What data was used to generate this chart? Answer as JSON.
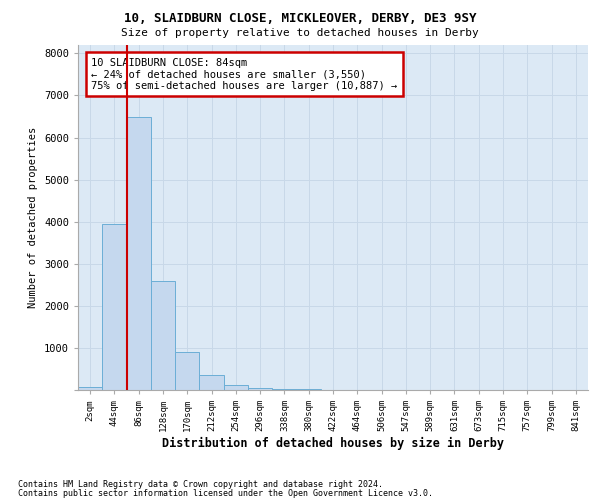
{
  "title1": "10, SLAIDBURN CLOSE, MICKLEOVER, DERBY, DE3 9SY",
  "title2": "Size of property relative to detached houses in Derby",
  "xlabel": "Distribution of detached houses by size in Derby",
  "ylabel": "Number of detached properties",
  "footnote1": "Contains HM Land Registry data © Crown copyright and database right 2024.",
  "footnote2": "Contains public sector information licensed under the Open Government Licence v3.0.",
  "annotation_line1": "10 SLAIDBURN CLOSE: 84sqm",
  "annotation_line2": "← 24% of detached houses are smaller (3,550)",
  "annotation_line3": "75% of semi-detached houses are larger (10,887) →",
  "bar_labels": [
    "2sqm",
    "44sqm",
    "86sqm",
    "128sqm",
    "170sqm",
    "212sqm",
    "254sqm",
    "296sqm",
    "338sqm",
    "380sqm",
    "422sqm",
    "464sqm",
    "506sqm",
    "547sqm",
    "589sqm",
    "631sqm",
    "673sqm",
    "715sqm",
    "757sqm",
    "799sqm",
    "841sqm"
  ],
  "bar_values": [
    70,
    3950,
    6500,
    2600,
    900,
    350,
    130,
    55,
    30,
    15,
    8,
    4,
    2,
    1,
    1,
    0,
    0,
    0,
    0,
    0,
    0
  ],
  "bar_color": "#c5d8ee",
  "bar_edge_color": "#6baed6",
  "grid_color": "#c8d8e8",
  "background_color": "#dce9f5",
  "vline_color": "#cc0000",
  "annotation_box_color": "#cc0000",
  "ylim": [
    0,
    8200
  ],
  "yticks": [
    0,
    1000,
    2000,
    3000,
    4000,
    5000,
    6000,
    7000,
    8000
  ]
}
